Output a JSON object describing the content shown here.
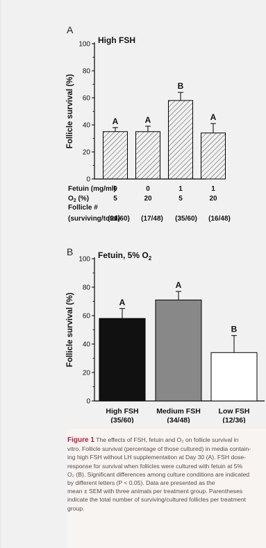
{
  "chart_data": [
    {
      "type": "bar",
      "panel": "A",
      "title": "High FSH",
      "ylabel": "Follicle survival (%)",
      "ylim": [
        0,
        100
      ],
      "yticks": [
        0,
        20,
        40,
        60,
        80,
        100
      ],
      "bar_style": "hatched",
      "row_headers": [
        "Fetuin (mg/ml)",
        "O",
        "Follicle #",
        "(surviving/total)"
      ],
      "o2_label": {
        "prefix": "O",
        "sub": "2",
        "suffix": " (%)"
      },
      "categories": [
        {
          "fetuin": "0",
          "o2": "5",
          "follicles": "(21/60)"
        },
        {
          "fetuin": "0",
          "o2": "20",
          "follicles": "(17/48)"
        },
        {
          "fetuin": "1",
          "o2": "5",
          "follicles": "(35/60)"
        },
        {
          "fetuin": "1",
          "o2": "20",
          "follicles": "(16/48)"
        }
      ],
      "values": [
        35,
        35,
        58,
        34
      ],
      "errors": [
        3,
        4,
        6,
        7
      ],
      "letters": [
        "A",
        "A",
        "B",
        "A"
      ]
    },
    {
      "type": "bar",
      "panel": "B",
      "title": "Fetuin, 5% O",
      "title_sub": "2",
      "ylabel": "Follicle survival (%)",
      "ylim": [
        0,
        100
      ],
      "yticks": [
        0,
        20,
        40,
        60,
        80,
        100
      ],
      "categories": [
        {
          "label": "High FSH",
          "follicles": "(35/60)"
        },
        {
          "label": "Medium FSH",
          "follicles": "(34/48)"
        },
        {
          "label": "Low FSH",
          "follicles": "(12/36)"
        }
      ],
      "values": [
        58,
        71,
        34
      ],
      "errors": [
        7,
        6,
        12
      ],
      "letters": [
        "A",
        "A",
        "B"
      ],
      "colors": [
        "#111111",
        "#888888",
        "#ffffff"
      ]
    }
  ],
  "caption": {
    "label": "Figure 1",
    "lines": [
      " The effects of FSH, fetuin and O₂ on follicle survival in",
      "vitro. Follicle survival (percentage of those cultured) in media contain-",
      "ing high FSH without LH supplementation at Day 30 (A). FSH dose-",
      "response for survival when follicles were cultured with fetuin at 5%",
      "O₂ (B). Significant differences among culture conditions are indicated",
      "by different letters (P < 0.05). Data are presented as the",
      "mean ± SEM with three animals per treatment group. Parentheses",
      "indicate the total number of surviving/cultured follicles per treatment",
      "group."
    ]
  }
}
